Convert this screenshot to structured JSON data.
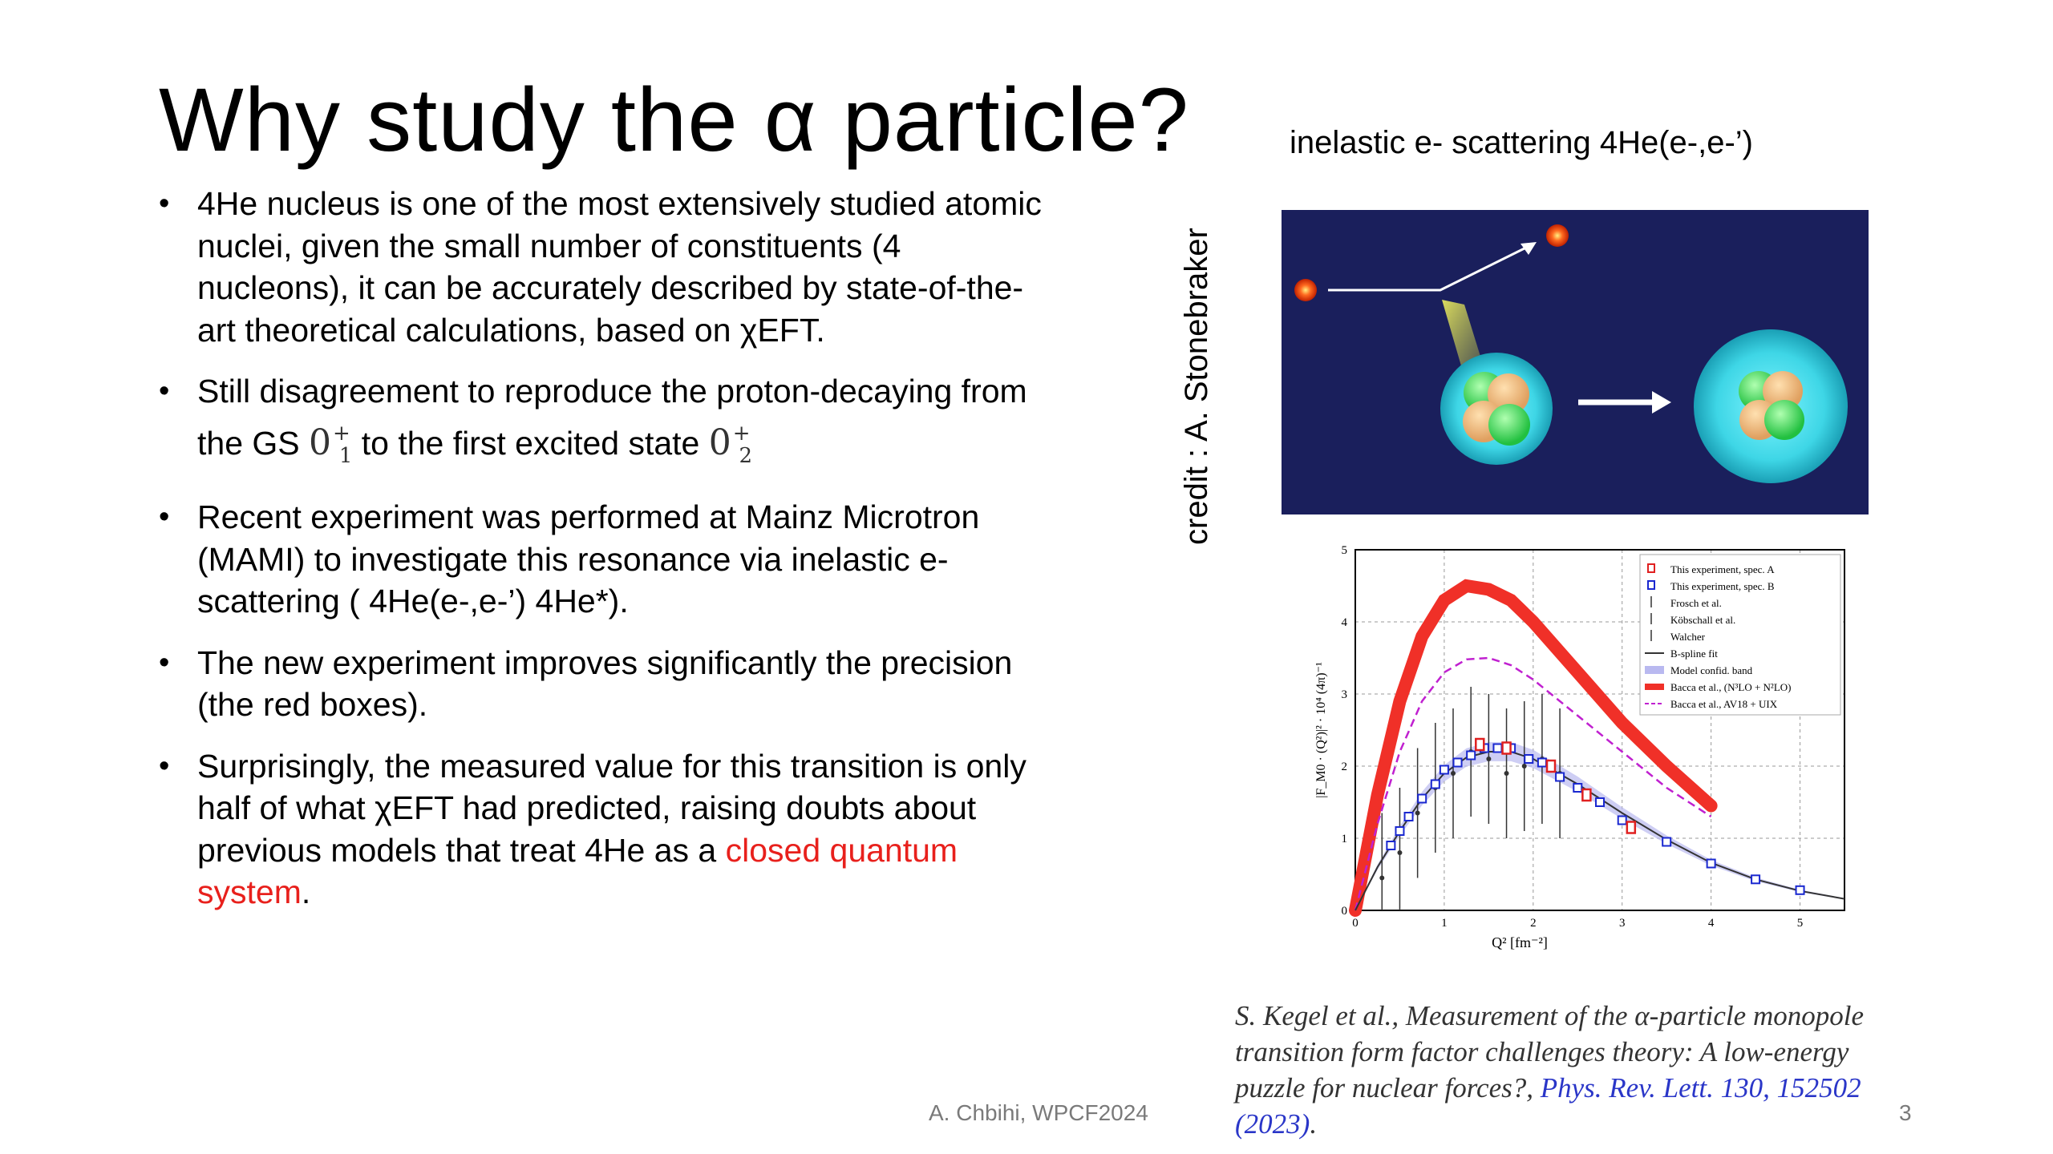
{
  "slide": {
    "title": "Why study the α particle?",
    "bullets": [
      {
        "text": "4He nucleus is one of the most extensively studied atomic nuclei, given the small number of constituents (4 nucleons), it can be accurately described by state-of-the-art theoretical calculations, based on χEFT."
      },
      {
        "text_before": "Still disagreement to reproduce the proton-decaying from the GS ",
        "state1_base": "0",
        "state1_sup": "+",
        "state1_sub": "1",
        "text_middle": " to the first excited state ",
        "state2_base": "0",
        "state2_sup": "+",
        "state2_sub": "2"
      },
      {
        "text": "Recent experiment was performed at Mainz Microtron (MAMI) to investigate this resonance via inelastic e- scattering ( 4He(e-,e-’) 4He*)."
      },
      {
        "text": "The new experiment improves significantly the precision (the red boxes)."
      },
      {
        "text_before": "Surprisingly,   the measured value for this transition is only half of what χEFT had predicted, raising doubts about previous models that treat 4He as a ",
        "highlight": "closed quantum system",
        "text_after": "."
      }
    ],
    "scatter_title": "inelastic e- scattering  4He(e-,e-’)",
    "credit": "credit : A. Stonebraker",
    "citation": {
      "text": "S. Kegel et al., Measurement of the α-particle monopole transition form factor challenges theory: A low-energy puzzle for nuclear forces?, ",
      "link": "Phys. Rev. Lett. 130, 152502 (2023)",
      "end": "."
    },
    "footer": "A. Chbihi, WPCF2024",
    "page_number": "3",
    "colors": {
      "highlight": "#e8201c",
      "diagram_bg": "#1a1f5c",
      "link": "#2a36c8"
    }
  },
  "chart_data": {
    "type": "line",
    "xlabel": "Q² [fm⁻²]",
    "ylabel": "|F_M0 · (Q²)|² · 10⁴ (4π)⁻¹",
    "xlim": [
      0,
      5.5
    ],
    "ylim": [
      0,
      5
    ],
    "xticks": [
      "0",
      "1",
      "2",
      "3",
      "4",
      "5"
    ],
    "yticks": [
      "0",
      "1",
      "2",
      "3",
      "4",
      "5"
    ],
    "grid": true,
    "legend_position": "top-right",
    "legend": [
      "This experiment, spec. A",
      "This experiment, spec. B",
      "Frosch et al.",
      "Köbschall et al.",
      "Walcher",
      "B-spline fit",
      "Model confid. band",
      "Bacca et al., (N³LO + N²LO)",
      "Bacca et al., AV18 + UIX"
    ],
    "series": [
      {
        "name": "Bacca et al., (N³LO + N²LO)",
        "x": [
          0,
          0.25,
          0.5,
          0.75,
          1.0,
          1.25,
          1.5,
          1.75,
          2.0,
          2.5,
          3.0,
          3.5,
          4.0
        ],
        "y": [
          0,
          1.6,
          2.9,
          3.8,
          4.3,
          4.5,
          4.45,
          4.3,
          4.0,
          3.3,
          2.6,
          2.0,
          1.45
        ]
      },
      {
        "name": "Bacca et al., AV18 + UIX",
        "x": [
          0,
          0.25,
          0.5,
          0.75,
          1.0,
          1.25,
          1.5,
          1.75,
          2.0,
          2.5,
          3.0,
          3.5,
          4.0
        ],
        "y": [
          0,
          1.2,
          2.2,
          2.9,
          3.3,
          3.48,
          3.5,
          3.4,
          3.2,
          2.7,
          2.2,
          1.7,
          1.3
        ]
      },
      {
        "name": "B-spline fit",
        "x": [
          0,
          0.25,
          0.5,
          0.75,
          1.0,
          1.25,
          1.5,
          1.75,
          2.0,
          2.5,
          3.0,
          3.5,
          4.0,
          4.5,
          5.0,
          5.5
        ],
        "y": [
          0,
          0.6,
          1.1,
          1.55,
          1.9,
          2.12,
          2.2,
          2.2,
          2.1,
          1.75,
          1.35,
          0.98,
          0.66,
          0.43,
          0.27,
          0.16
        ]
      },
      {
        "name": "This experiment, spec. A",
        "x": [
          1.4,
          1.7,
          2.2,
          2.6,
          3.1
        ],
        "y": [
          2.3,
          2.25,
          2.0,
          1.6,
          1.15
        ]
      },
      {
        "name": "This experiment, spec. B",
        "x": [
          0.4,
          0.5,
          0.6,
          0.75,
          0.9,
          1.0,
          1.15,
          1.3,
          1.45,
          1.6,
          1.75,
          1.95,
          2.1,
          2.3,
          2.5,
          2.75,
          3.0,
          3.5,
          4.0,
          4.5,
          5.0
        ],
        "y": [
          0.9,
          1.1,
          1.3,
          1.55,
          1.75,
          1.95,
          2.05,
          2.15,
          2.25,
          2.25,
          2.25,
          2.1,
          2.05,
          1.85,
          1.7,
          1.5,
          1.25,
          0.95,
          0.65,
          0.43,
          0.28
        ]
      },
      {
        "name": "Frosch et al.",
        "x": [
          0.3,
          0.5,
          0.7,
          0.9,
          1.1,
          1.3,
          1.5,
          1.7,
          1.9,
          2.1,
          2.3
        ],
        "y": [
          0.45,
          0.8,
          1.35,
          1.7,
          1.9,
          2.2,
          2.1,
          1.9,
          2.0,
          2.1,
          1.9
        ]
      }
    ]
  }
}
